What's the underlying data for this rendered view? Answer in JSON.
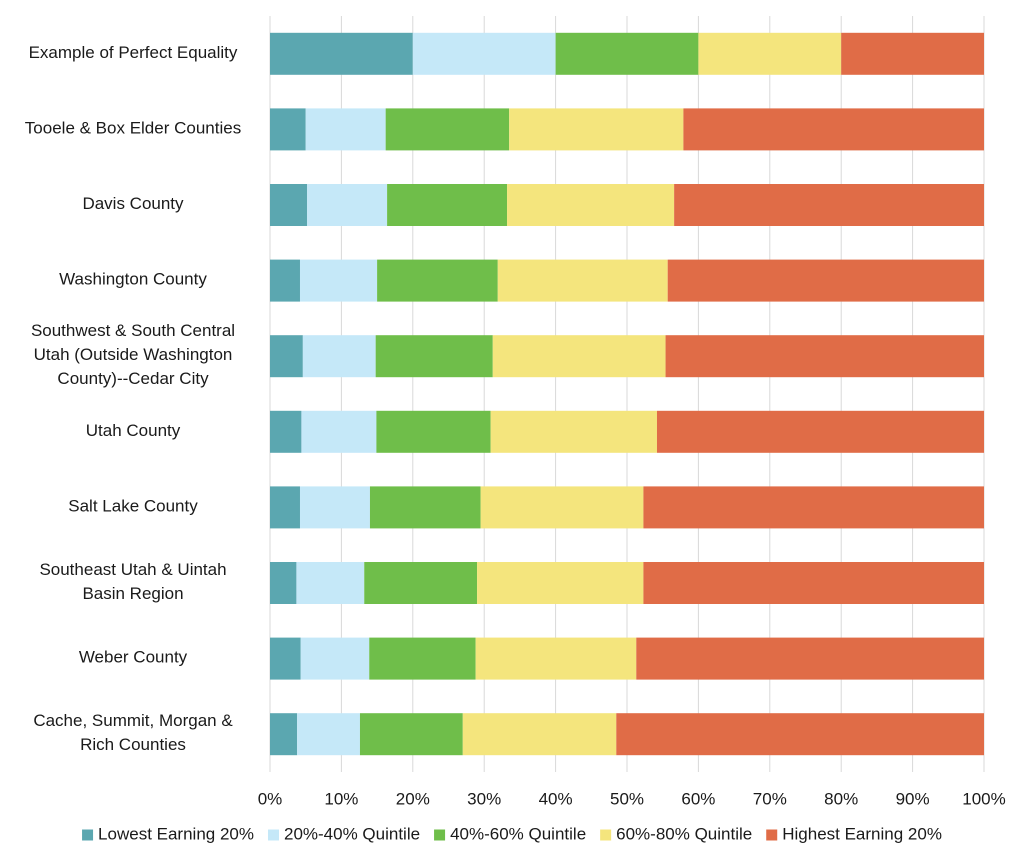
{
  "chart_data": {
    "type": "bar",
    "orientation": "horizontal",
    "stacked": true,
    "categories": [
      "Example of Perfect Equality",
      "Tooele & Box Elder Counties",
      "Davis County",
      "Washington County",
      "Southwest & South Central Utah (Outside Washington County)--Cedar City",
      "Utah County",
      "Salt Lake County",
      "Southeast Utah & Uintah Basin Region",
      "Weber County",
      "Cache, Summit, Morgan & Rich Counties"
    ],
    "category_lines": [
      [
        "Example of Perfect Equality"
      ],
      [
        "Tooele & Box Elder Counties"
      ],
      [
        "Davis County"
      ],
      [
        "Washington County"
      ],
      [
        "Southwest & South Central",
        "Utah (Outside Washington",
        "County)--Cedar City"
      ],
      [
        "Utah County"
      ],
      [
        "Salt Lake County"
      ],
      [
        "Southeast Utah & Uintah",
        "Basin Region"
      ],
      [
        "Weber County"
      ],
      [
        "Cache, Summit, Morgan &",
        "Rich Counties"
      ]
    ],
    "series": [
      {
        "name": "Lowest Earning 20%",
        "color": "#5ba7b0",
        "values": [
          20,
          5.0,
          5.2,
          4.2,
          4.6,
          4.4,
          4.2,
          3.7,
          4.3,
          3.8
        ]
      },
      {
        "name": "20%-40% Quintile",
        "color": "#c5e8f8",
        "values": [
          20,
          11.2,
          11.2,
          10.8,
          10.2,
          10.5,
          9.8,
          9.5,
          9.6,
          8.8
        ]
      },
      {
        "name": "40%-60% Quintile",
        "color": "#6fbe4a",
        "values": [
          20,
          17.3,
          16.8,
          16.9,
          16.4,
          16.0,
          15.5,
          15.8,
          14.9,
          14.4
        ]
      },
      {
        "name": "60%-80% Quintile",
        "color": "#f4e57d",
        "values": [
          20,
          24.4,
          23.4,
          23.8,
          24.2,
          23.3,
          22.8,
          23.3,
          22.5,
          21.5
        ]
      },
      {
        "name": "Highest Earning 20%",
        "color": "#e06c47",
        "values": [
          20,
          42.1,
          43.4,
          44.3,
          44.6,
          45.8,
          47.7,
          47.7,
          48.7,
          51.5
        ]
      }
    ],
    "x_ticks": [
      "0%",
      "10%",
      "20%",
      "30%",
      "40%",
      "50%",
      "60%",
      "70%",
      "80%",
      "90%",
      "100%"
    ],
    "xlim": [
      0,
      100
    ],
    "title": "",
    "xlabel": "",
    "ylabel": "",
    "grid": "vertical",
    "legend_position": "bottom"
  }
}
